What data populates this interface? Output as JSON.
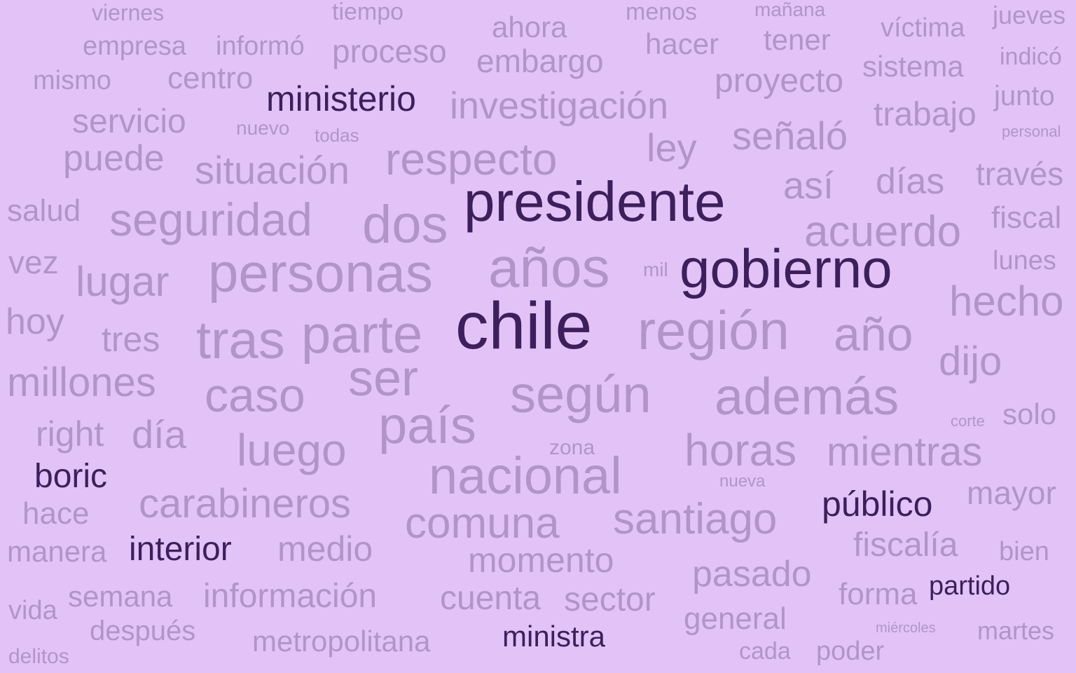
{
  "colors": {
    "background": "#e3c3f7",
    "muted": "#b394c9",
    "highlight": "#3d1f5c"
  },
  "words": [
    "chile",
    "presidente",
    "gobierno",
    "años",
    "personas",
    "región",
    "parte",
    "tras",
    "según",
    "además",
    "país",
    "nacional",
    "ser",
    "caso",
    "dos",
    "año",
    "seguridad",
    "respecto",
    "acuerdo",
    "hecho",
    "comuna",
    "santiago",
    "horas",
    "mientras",
    "carabineros",
    "luego",
    "lugar",
    "millones",
    "investigación",
    "situación",
    "dijo",
    "señaló",
    "día",
    "información",
    "momento",
    "medio",
    "días",
    "así",
    "pasado",
    "fiscalía",
    "puede",
    "servicio",
    "proyecto",
    "trabajo",
    "ley",
    "ministerio",
    "público",
    "interior",
    "boric",
    "proceso",
    "embargo",
    "metropolitana",
    "cuenta",
    "sector",
    "mayor",
    "general",
    "partido",
    "ministra",
    "right",
    "hoy",
    "fiscal",
    "través",
    "salud",
    "vez",
    "tres",
    "mismo",
    "centro",
    "sistema",
    "manera",
    "hace",
    "semana",
    "después",
    "forma",
    "ahora",
    "hacer",
    "tener",
    "empresa",
    "informó",
    "víctima",
    "solo",
    "junto",
    "jueves",
    "indicó",
    "lunes",
    "martes",
    "bien",
    "vida",
    "viernes",
    "tiempo",
    "menos",
    "mañana",
    "zona",
    "poder",
    "cada",
    "delitos",
    "nuevo",
    "todas",
    "mil",
    "corte",
    "nueva",
    "personal",
    "miércoles"
  ]
}
